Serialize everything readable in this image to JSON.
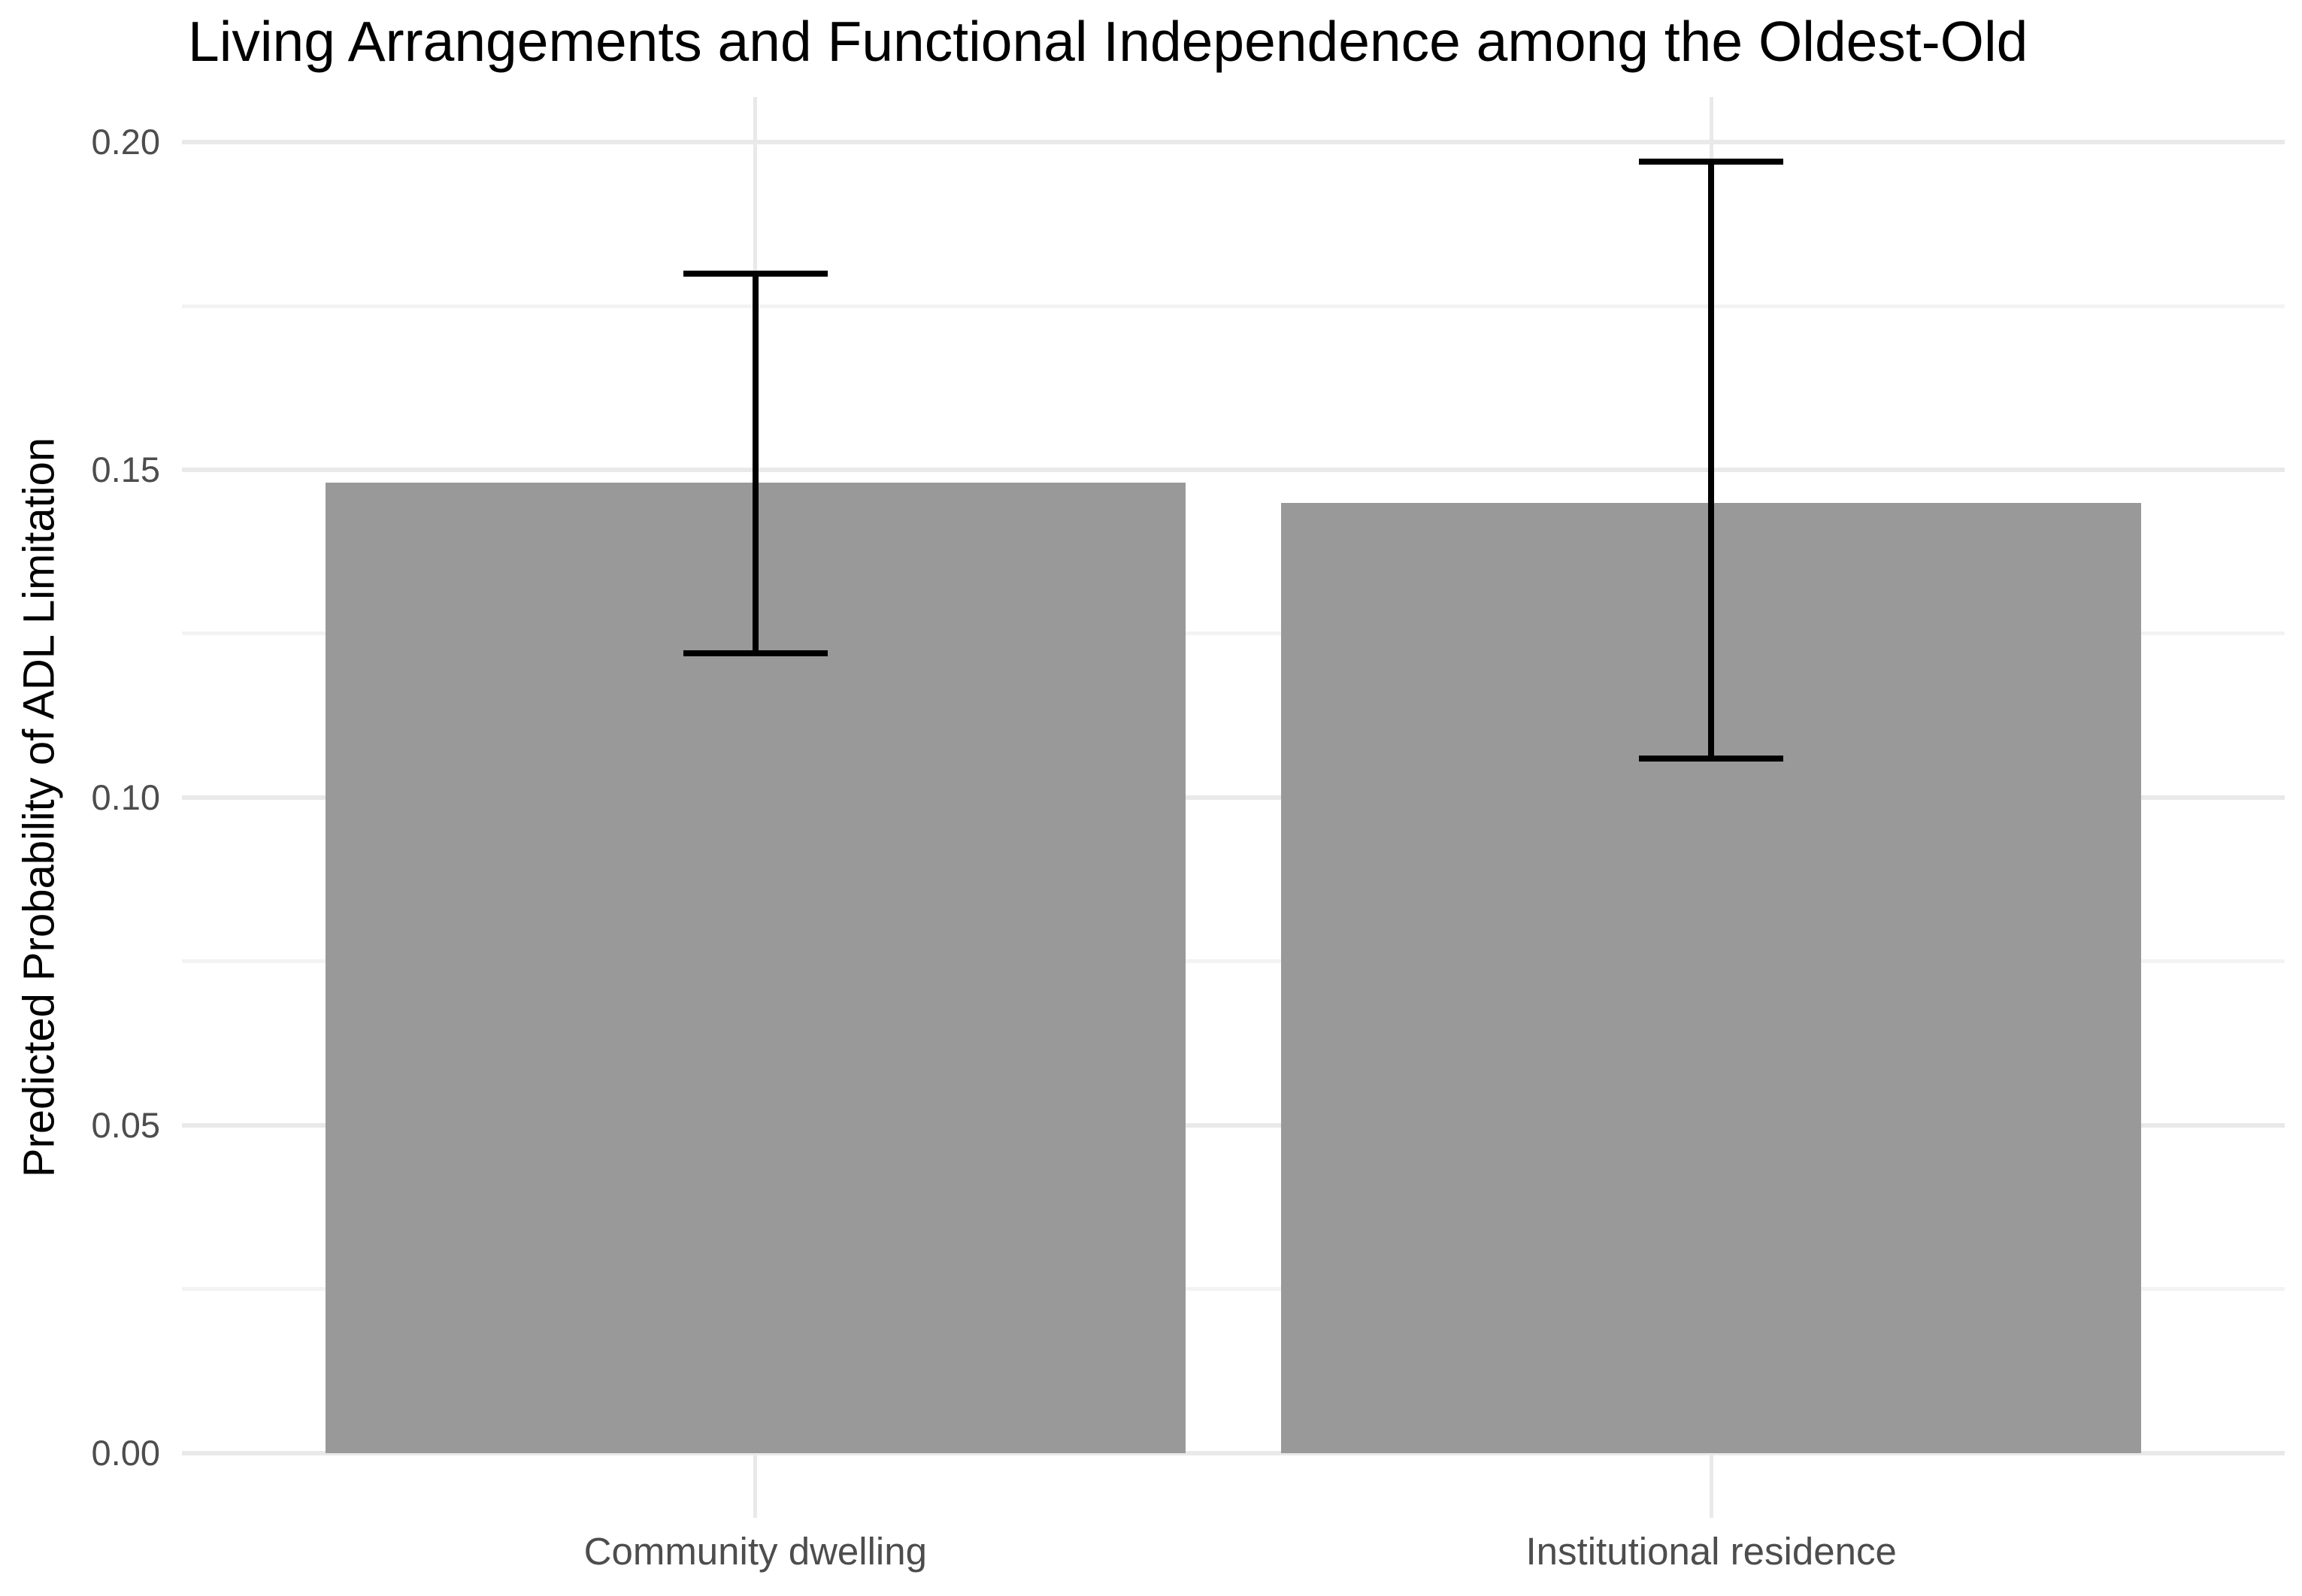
{
  "chart_data": {
    "type": "bar",
    "title": "Living Arrangements and Functional Independence among the Oldest-Old",
    "xlabel": "",
    "ylabel": "Predicted Probability of ADL Limitation",
    "categories": [
      "Community dwelling",
      "Institutional residence"
    ],
    "values": [
      0.148,
      0.145
    ],
    "error_bars": [
      {
        "low": 0.122,
        "high": 0.18
      },
      {
        "low": 0.106,
        "high": 0.197
      }
    ],
    "yticks": [
      0.0,
      0.05,
      0.1,
      0.15,
      0.2
    ],
    "ytick_labels": [
      "0.00",
      "0.05",
      "0.10",
      "0.15",
      "0.20"
    ],
    "yticks_minor": [
      0.025,
      0.075,
      0.125,
      0.175
    ],
    "ylim": [
      -0.0099,
      0.2069
    ],
    "grid": "major+minor horizontal, one vertical gridline per category",
    "legend": "none",
    "colors": {
      "bar_fill": "#999999",
      "error_bar": "#000000",
      "grid_major": "#E9E9E9",
      "grid_minor": "#F3F3F3",
      "tick_text": "#4D4D4D",
      "title_text": "#000000",
      "background": "#FFFFFF"
    }
  }
}
